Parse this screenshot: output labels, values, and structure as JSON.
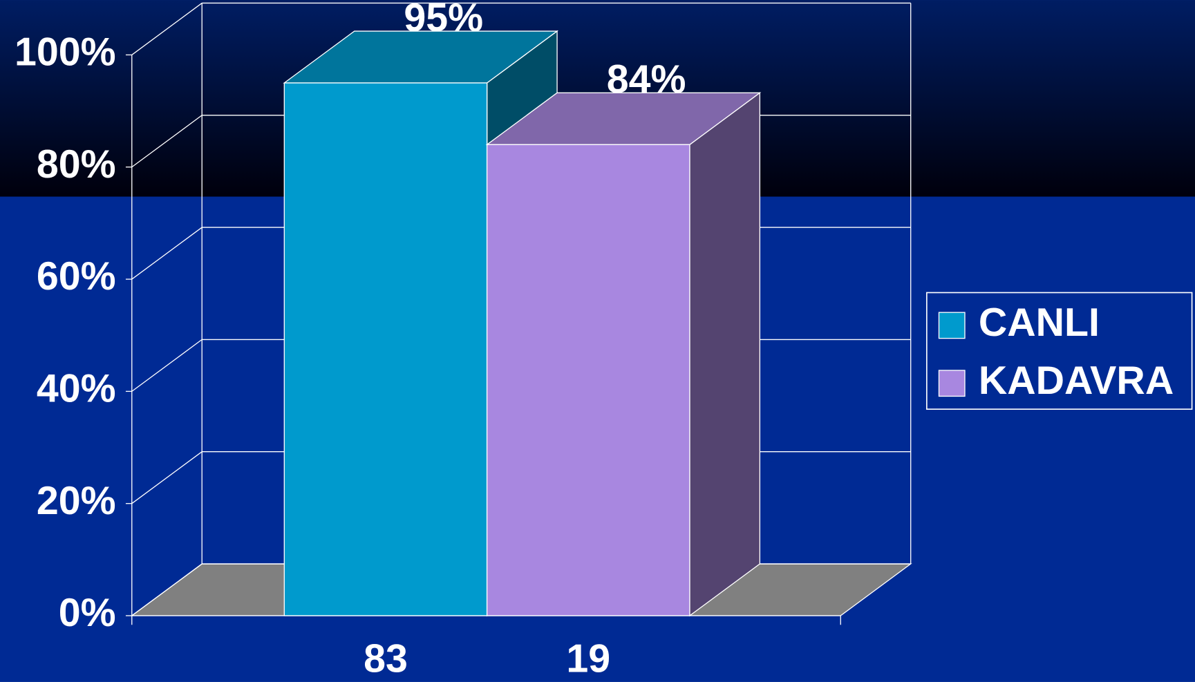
{
  "chart_data": {
    "type": "bar3d",
    "categories": [
      "83",
      "19"
    ],
    "series": [
      {
        "name": "CANLI",
        "color": "#009acd",
        "values": [
          95,
          null
        ],
        "value_labels": [
          "95%",
          null
        ]
      },
      {
        "name": "KADAVRA",
        "color": "#a887e0",
        "values": [
          null,
          84
        ],
        "value_labels": [
          null,
          "84%"
        ]
      }
    ],
    "ylim": [
      0,
      100
    ],
    "yticks": [
      {
        "value": 0,
        "label": "0%"
      },
      {
        "value": 20,
        "label": "20%"
      },
      {
        "value": 40,
        "label": "40%"
      },
      {
        "value": 60,
        "label": "60%"
      },
      {
        "value": 80,
        "label": "80%"
      },
      {
        "value": 100,
        "label": "100%"
      }
    ],
    "grid": true,
    "legend": "right"
  }
}
